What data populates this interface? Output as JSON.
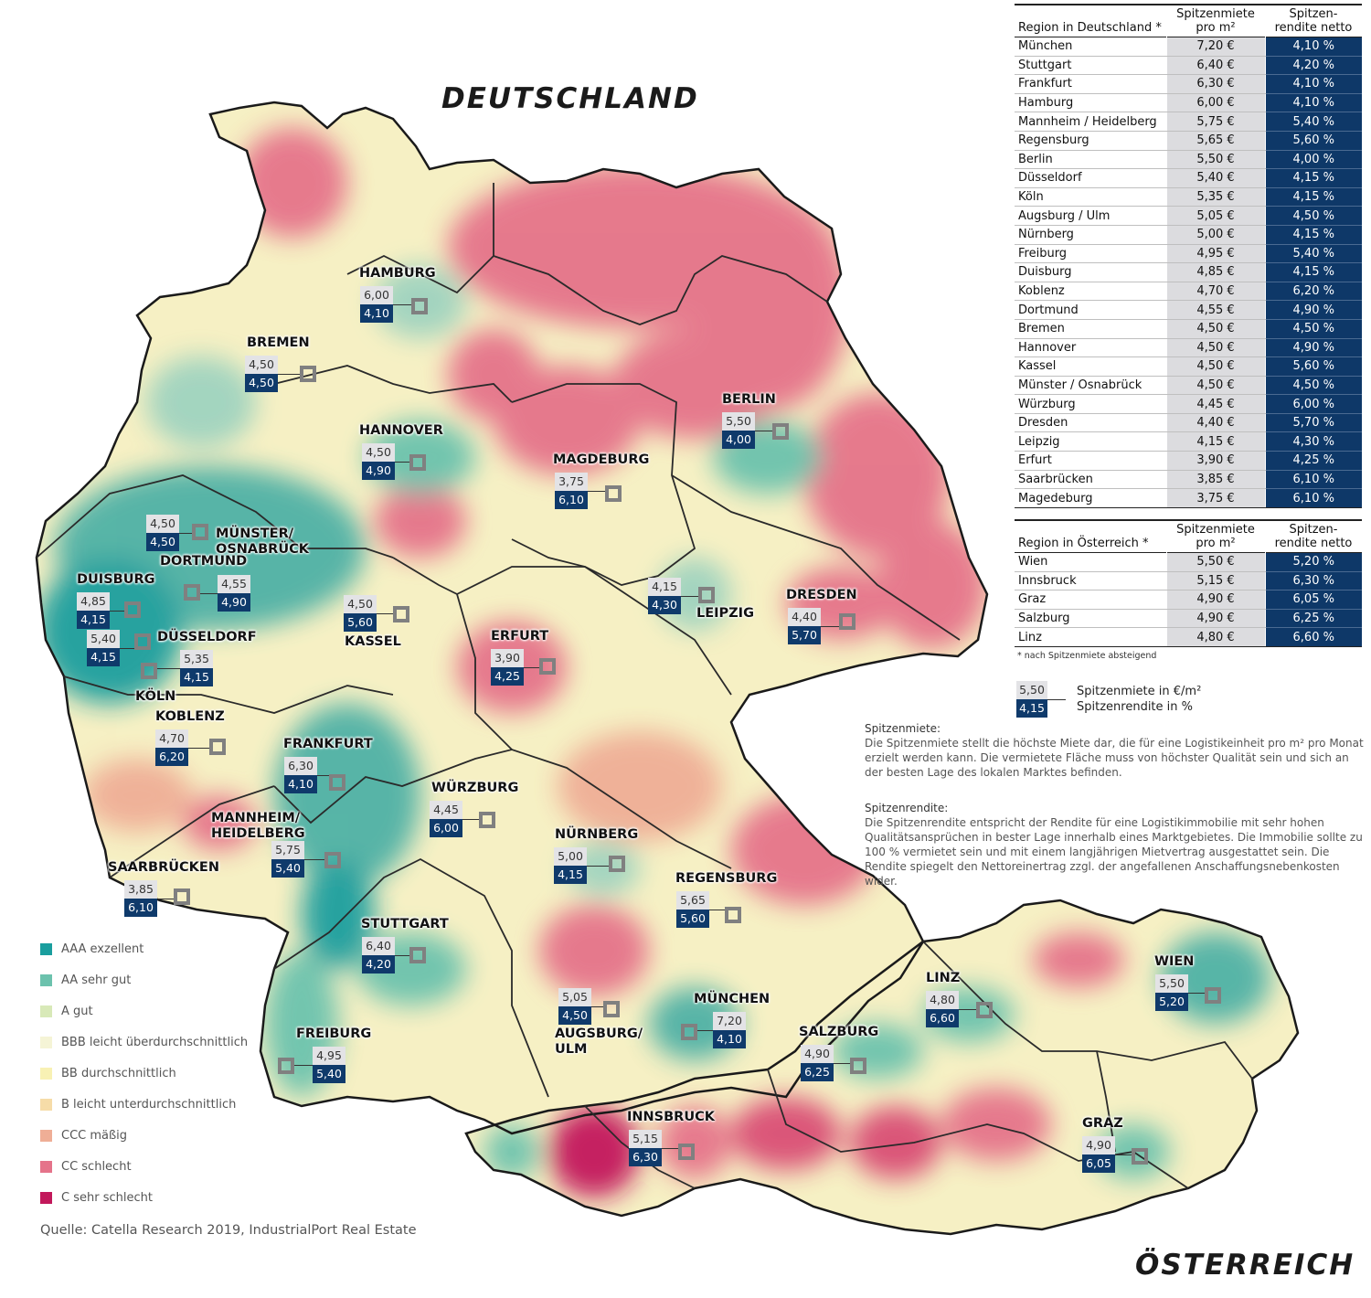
{
  "titles": {
    "germany": "DEUTSCHLAND",
    "austria": "ÖSTERREICH"
  },
  "table_de": {
    "headers": {
      "region": "Region in Deutschland *",
      "rent": "Spitzenmiete pro m²",
      "yield": "Spitzen-rendite netto"
    },
    "rows": [
      {
        "region": "München",
        "rent": "7,20 €",
        "yield": "4,10 %"
      },
      {
        "region": "Stuttgart",
        "rent": "6,40 €",
        "yield": "4,20 %"
      },
      {
        "region": "Frankfurt",
        "rent": "6,30 €",
        "yield": "4,10 %"
      },
      {
        "region": "Hamburg",
        "rent": "6,00 €",
        "yield": "4,10 %"
      },
      {
        "region": "Mannheim / Heidelberg",
        "rent": "5,75 €",
        "yield": "5,40 %"
      },
      {
        "region": "Regensburg",
        "rent": "5,65 €",
        "yield": "5,60 %"
      },
      {
        "region": "Berlin",
        "rent": "5,50 €",
        "yield": "4,00 %"
      },
      {
        "region": "Düsseldorf",
        "rent": "5,40 €",
        "yield": "4,15 %"
      },
      {
        "region": "Köln",
        "rent": "5,35 €",
        "yield": "4,15 %"
      },
      {
        "region": "Augsburg / Ulm",
        "rent": "5,05 €",
        "yield": "4,50 %"
      },
      {
        "region": "Nürnberg",
        "rent": "5,00 €",
        "yield": "4,15 %"
      },
      {
        "region": "Freiburg",
        "rent": "4,95 €",
        "yield": "5,40 %"
      },
      {
        "region": "Duisburg",
        "rent": "4,85 €",
        "yield": "4,15 %"
      },
      {
        "region": "Koblenz",
        "rent": "4,70 €",
        "yield": "6,20 %"
      },
      {
        "region": "Dortmund",
        "rent": "4,55 €",
        "yield": "4,90 %"
      },
      {
        "region": "Bremen",
        "rent": "4,50 €",
        "yield": "4,50 %"
      },
      {
        "region": "Hannover",
        "rent": "4,50 €",
        "yield": "4,90 %"
      },
      {
        "region": "Kassel",
        "rent": "4,50 €",
        "yield": "5,60 %"
      },
      {
        "region": "Münster / Osnabrück",
        "rent": "4,50 €",
        "yield": "4,50 %"
      },
      {
        "region": "Würzburg",
        "rent": "4,45 €",
        "yield": "6,00 %"
      },
      {
        "region": "Dresden",
        "rent": "4,40 €",
        "yield": "5,70 %"
      },
      {
        "region": "Leipzig",
        "rent": "4,15 €",
        "yield": "4,30 %"
      },
      {
        "region": "Erfurt",
        "rent": "3,90 €",
        "yield": "4,25 %"
      },
      {
        "region": "Saarbrücken",
        "rent": "3,85 €",
        "yield": "6,10 %"
      },
      {
        "region": "Magedeburg",
        "rent": "3,75 €",
        "yield": "6,10 %"
      }
    ]
  },
  "table_at": {
    "headers": {
      "region": "Region in Österreich *",
      "rent": "Spitzenmiete pro m²",
      "yield": "Spitzen-rendite netto"
    },
    "rows": [
      {
        "region": "Wien",
        "rent": "5,50 €",
        "yield": "5,20 %"
      },
      {
        "region": "Innsbruck",
        "rent": "5,15 €",
        "yield": "6,30 %"
      },
      {
        "region": "Graz",
        "rent": "4,90 €",
        "yield": "6,05 %"
      },
      {
        "region": "Salzburg",
        "rent": "4,90 €",
        "yield": "6,25 %"
      },
      {
        "region": "Linz",
        "rent": "4,80 €",
        "yield": "6,60 %"
      }
    ]
  },
  "footnote": "* nach Spitzenmiete absteigend",
  "key": {
    "rent_sample": "5,50",
    "yield_sample": "4,15",
    "rent_label": "Spitzenmiete in €/m²",
    "yield_label": "Spitzenrendite in %"
  },
  "definitions": {
    "rent_heading": "Spitzenmiete:",
    "rent_text": "Die Spitzenmiete stellt die höchste Miete dar, die für eine Logistikeinheit pro m² pro Monat erzielt werden kann. Die vermietete Fläche muss von höchster Qualität sein und sich an der besten Lage des lokalen Marktes befinden.",
    "yield_heading": "Spitzenrendite:",
    "yield_text": "Die Spitzenrendite entspricht der Rendite für eine Logistikimmobilie mit sehr hohen Qualitätsansprüchen in bester Lage innerhalb eines Marktgebietes. Die Immobilie sollte zu 100 % vermietet sein und mit einem langjährigen Mietvertrag ausgestattet sein. Die Rendite spiegelt den Nettoreinertrag zzgl. der angefallenen Anschaffungsnebenkosten wider."
  },
  "legend": [
    {
      "label": "AAA exzellent",
      "color": "#1a9e9e"
    },
    {
      "label": "AA sehr gut",
      "color": "#6cc2ad"
    },
    {
      "label": "A gut",
      "color": "#d8e9b8"
    },
    {
      "label": "BBB leicht überdurchschnittlich",
      "color": "#f5f4d6"
    },
    {
      "label": "BB durchschnittlich",
      "color": "#f8f1b4"
    },
    {
      "label": "B leicht unterdurchschnittlich",
      "color": "#f6dca8"
    },
    {
      "label": "CCC mäßig",
      "color": "#efae96"
    },
    {
      "label": "CC schlecht",
      "color": "#e5738a"
    },
    {
      "label": "C sehr schlecht",
      "color": "#c2185b"
    }
  ],
  "source": "Quelle: Catella Research 2019, IndustrialPort Real Estate",
  "cities": [
    {
      "name": "HAMBURG",
      "rent": "6,00",
      "yield": "4,10"
    },
    {
      "name": "BREMEN",
      "rent": "4,50",
      "yield": "4,50"
    },
    {
      "name": "HANNOVER",
      "rent": "4,50",
      "yield": "4,90"
    },
    {
      "name": "BERLIN",
      "rent": "5,50",
      "yield": "4,00"
    },
    {
      "name": "MAGDEBURG",
      "rent": "3,75",
      "yield": "6,10"
    },
    {
      "name": "MÜNSTER/ OSNABRÜCK",
      "rent": "4,50",
      "yield": "4,50"
    },
    {
      "name": "DORTMUND",
      "rent": "4,55",
      "yield": "4,90"
    },
    {
      "name": "DUISBURG",
      "rent": "4,85",
      "yield": "4,15"
    },
    {
      "name": "DÜSSELDORF",
      "rent": "5,40",
      "yield": "4,15"
    },
    {
      "name": "KÖLN",
      "rent": "5,35",
      "yield": "4,15"
    },
    {
      "name": "KASSEL",
      "rent": "4,50",
      "yield": "5,60"
    },
    {
      "name": "LEIPZIG",
      "rent": "4,15",
      "yield": "4,30"
    },
    {
      "name": "DRESDEN",
      "rent": "4,40",
      "yield": "5,70"
    },
    {
      "name": "ERFURT",
      "rent": "3,90",
      "yield": "4,25"
    },
    {
      "name": "KOBLENZ",
      "rent": "4,70",
      "yield": "6,20"
    },
    {
      "name": "FRANKFURT",
      "rent": "6,30",
      "yield": "4,10"
    },
    {
      "name": "WÜRZBURG",
      "rent": "4,45",
      "yield": "6,00"
    },
    {
      "name": "MANNHEIM/ HEIDELBERG",
      "rent": "5,75",
      "yield": "5,40"
    },
    {
      "name": "NÜRNBERG",
      "rent": "5,00",
      "yield": "4,15"
    },
    {
      "name": "SAARBRÜCKEN",
      "rent": "3,85",
      "yield": "6,10"
    },
    {
      "name": "REGENSBURG",
      "rent": "5,65",
      "yield": "5,60"
    },
    {
      "name": "STUTTGART",
      "rent": "6,40",
      "yield": "4,20"
    },
    {
      "name": "AUGSBURG/ ULM",
      "rent": "5,05",
      "yield": "4,50"
    },
    {
      "name": "MÜNCHEN",
      "rent": "7,20",
      "yield": "4,10"
    },
    {
      "name": "FREIBURG",
      "rent": "4,95",
      "yield": "5,40"
    },
    {
      "name": "SALZBURG",
      "rent": "4,90",
      "yield": "6,25"
    },
    {
      "name": "LINZ",
      "rent": "4,80",
      "yield": "6,60"
    },
    {
      "name": "WIEN",
      "rent": "5,50",
      "yield": "5,20"
    },
    {
      "name": "INNSBRUCK",
      "rent": "5,15",
      "yield": "6,30"
    },
    {
      "name": "GRAZ",
      "rent": "4,90",
      "yield": "6,05"
    }
  ]
}
